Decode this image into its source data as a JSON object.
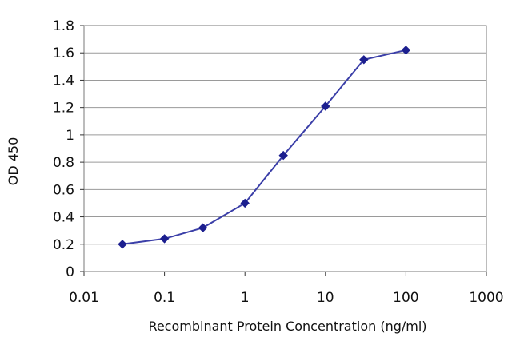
{
  "chart_data": {
    "type": "line",
    "xscale": "log",
    "x": [
      0.03,
      0.1,
      0.3,
      1,
      3,
      10,
      30,
      100
    ],
    "series": [
      {
        "values": [
          0.2,
          0.24,
          0.32,
          0.5,
          0.85,
          1.21,
          1.55,
          1.62
        ]
      }
    ],
    "xlim": [
      0.01,
      1000
    ],
    "ylim": [
      0,
      1.8
    ],
    "xticks": [
      0.01,
      0.1,
      1,
      10,
      100,
      1000
    ],
    "xtick_labels": [
      "0.01",
      "0.1",
      "1",
      "10",
      "100",
      "1000"
    ],
    "yticks": [
      0,
      0.2,
      0.4,
      0.6,
      0.8,
      1,
      1.2,
      1.4,
      1.6,
      1.8
    ],
    "ytick_labels": [
      "0",
      "0.2",
      "0.4",
      "0.6",
      "0.8",
      "1",
      "1.2",
      "1.4",
      "1.6",
      "1.8"
    ],
    "xlabel": "Recombinant Protein Concentration (ng/ml)",
    "ylabel": "OD 450",
    "grid": "horizontal",
    "colors": {
      "line": "#3b3fa8",
      "marker": "#1c1f8f",
      "grid": "#9a9a9a",
      "frame": "#7a7a7a"
    }
  }
}
